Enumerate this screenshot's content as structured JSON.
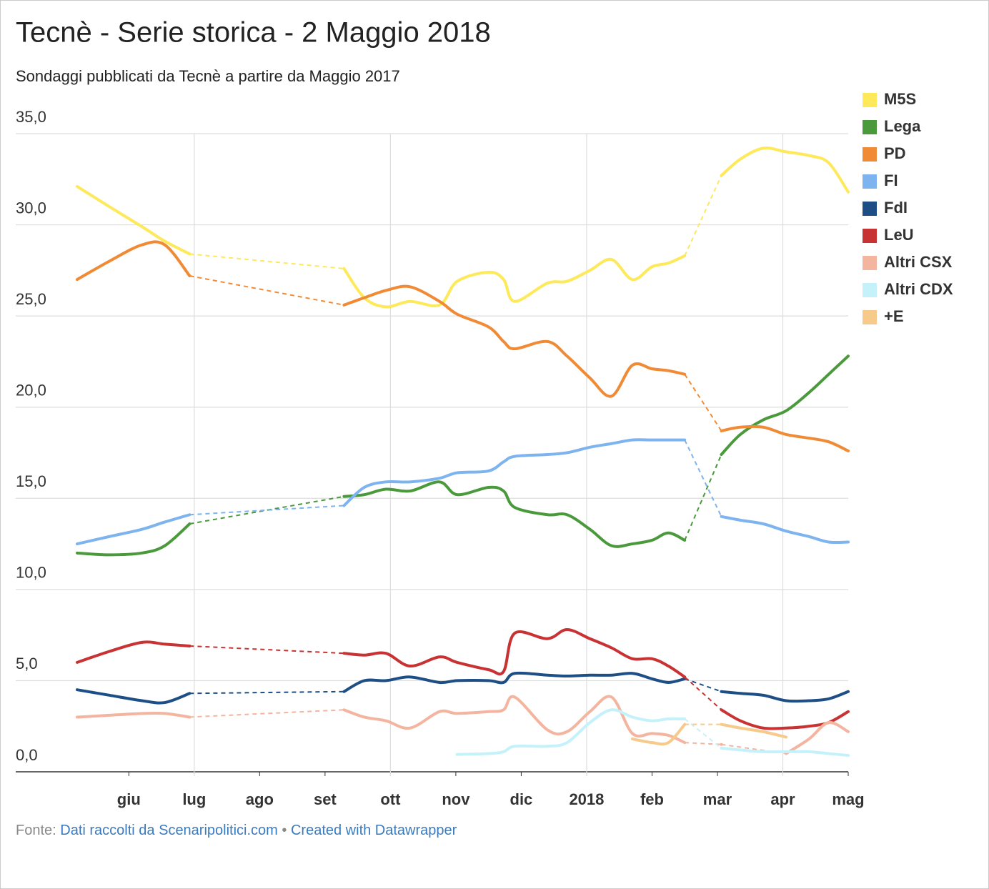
{
  "chart_data": {
    "type": "line",
    "title": "Tecnè - Serie storica - 2 Maggio 2018",
    "subtitle": "Sondaggi pubblicati da Tecnè a partire da Maggio 2017",
    "footer": {
      "prefix": "Fonte:",
      "source": "Dati raccolti da Scenaripolitici.com",
      "separator": "•",
      "credit": "Created with Datawrapper"
    },
    "x": [
      0.21,
      0.7,
      1.2,
      1.55,
      1.93,
      4.29,
      4.6,
      4.93,
      5.3,
      5.75,
      6.02,
      6.5,
      6.73,
      6.9,
      7.4,
      7.7,
      8.05,
      8.38,
      8.7,
      9.0,
      9.25,
      9.5,
      10.06,
      10.35,
      10.7,
      11.05,
      11.4,
      11.7,
      12.0
    ],
    "xlim": [
      0.21,
      12.0
    ],
    "xticks": [
      {
        "value": 1,
        "label": "giu"
      },
      {
        "value": 2,
        "label": "lug"
      },
      {
        "value": 3,
        "label": "ago"
      },
      {
        "value": 4,
        "label": "set"
      },
      {
        "value": 5,
        "label": "ott"
      },
      {
        "value": 6,
        "label": "nov"
      },
      {
        "value": 7,
        "label": "dic"
      },
      {
        "value": 8,
        "label": "2018"
      },
      {
        "value": 9,
        "label": "feb"
      },
      {
        "value": 10,
        "label": "mar"
      },
      {
        "value": 11,
        "label": "apr"
      },
      {
        "value": 12,
        "label": "mag"
      }
    ],
    "ylim": [
      0,
      35
    ],
    "yticks": [
      {
        "value": 0,
        "label": "0,0"
      },
      {
        "value": 5,
        "label": "5,0"
      },
      {
        "value": 10,
        "label": "10,0"
      },
      {
        "value": 15,
        "label": "15,0"
      },
      {
        "value": 20,
        "label": "20,0"
      },
      {
        "value": 25,
        "label": "25,0"
      },
      {
        "value": 30,
        "label": "30,0"
      },
      {
        "value": 35,
        "label": "35,0"
      }
    ],
    "grid": true,
    "legend": "right",
    "series": [
      {
        "name": "M5S",
        "color": "#fde95a",
        "values": [
          32.1,
          31.0,
          29.9,
          29.1,
          28.4,
          27.6,
          26.0,
          25.5,
          25.8,
          25.6,
          26.9,
          27.4,
          27.0,
          25.8,
          26.8,
          26.9,
          27.5,
          28.1,
          27.0,
          27.7,
          27.9,
          28.3,
          32.7,
          33.6,
          34.2,
          34.0,
          33.8,
          33.4,
          31.8
        ]
      },
      {
        "name": "Lega",
        "color": "#4a9a3c",
        "values": [
          12.0,
          11.9,
          12.0,
          12.4,
          13.6,
          15.1,
          15.2,
          15.5,
          15.4,
          15.9,
          15.2,
          15.6,
          15.4,
          14.5,
          14.1,
          14.1,
          13.3,
          12.4,
          12.5,
          12.7,
          13.1,
          12.7,
          17.4,
          18.5,
          19.3,
          19.8,
          20.8,
          21.8,
          22.8
        ]
      },
      {
        "name": "PD",
        "color": "#f08a35",
        "values": [
          27.0,
          28.0,
          28.9,
          28.9,
          27.2,
          25.6,
          26.0,
          26.4,
          26.6,
          25.8,
          25.1,
          24.4,
          23.6,
          23.2,
          23.6,
          22.8,
          21.6,
          20.6,
          22.3,
          22.1,
          22.0,
          21.8,
          18.7,
          18.9,
          18.9,
          18.5,
          18.3,
          18.1,
          17.6
        ]
      },
      {
        "name": "FI",
        "color": "#7db3ee",
        "values": [
          12.5,
          12.9,
          13.3,
          13.7,
          14.1,
          14.6,
          15.6,
          15.9,
          15.9,
          16.1,
          16.4,
          16.5,
          17.0,
          17.3,
          17.4,
          17.5,
          17.8,
          18.0,
          18.2,
          18.2,
          18.2,
          18.2,
          14.0,
          13.8,
          13.6,
          13.2,
          12.9,
          12.6,
          12.6
        ]
      },
      {
        "name": "FdI",
        "color": "#1d4e86",
        "values": [
          4.5,
          4.2,
          3.9,
          3.8,
          4.3,
          4.4,
          5.0,
          5.0,
          5.2,
          4.9,
          5.0,
          5.0,
          4.9,
          5.4,
          5.3,
          5.25,
          5.3,
          5.3,
          5.4,
          5.1,
          4.9,
          5.1,
          4.4,
          4.3,
          4.2,
          3.9,
          3.9,
          4.0,
          4.4
        ]
      },
      {
        "name": "LeU",
        "color": "#c83232",
        "values": [
          6.0,
          6.6,
          7.1,
          7.0,
          6.9,
          6.5,
          6.4,
          6.5,
          5.8,
          6.3,
          6.0,
          5.6,
          5.5,
          7.6,
          7.3,
          7.8,
          7.3,
          6.8,
          6.2,
          6.2,
          5.8,
          5.2,
          3.4,
          2.8,
          2.4,
          2.4,
          2.5,
          2.7,
          3.3
        ]
      },
      {
        "name": "Altri CSX",
        "color": "#f3b5a0",
        "values": [
          3.0,
          3.1,
          3.2,
          3.2,
          3.0,
          3.4,
          3.0,
          2.8,
          2.4,
          3.3,
          3.2,
          3.3,
          3.4,
          4.1,
          2.3,
          2.2,
          3.3,
          4.1,
          2.1,
          2.1,
          2.0,
          1.6,
          1.5,
          null,
          null,
          1.0,
          1.8,
          2.7,
          2.2
        ]
      },
      {
        "name": "Altri CDX",
        "color": "#c5f2fa",
        "values": [
          null,
          null,
          null,
          null,
          null,
          null,
          null,
          null,
          null,
          null,
          0.95,
          1.0,
          1.1,
          1.4,
          1.4,
          1.6,
          2.7,
          3.4,
          3.0,
          2.8,
          2.9,
          2.9,
          1.3,
          1.2,
          1.1,
          1.1,
          1.1,
          1.0,
          0.9
        ]
      },
      {
        "name": "+E",
        "color": "#f7c98a",
        "values": [
          null,
          null,
          null,
          null,
          null,
          null,
          null,
          null,
          null,
          null,
          null,
          null,
          null,
          null,
          null,
          null,
          null,
          null,
          1.8,
          1.6,
          1.6,
          2.6,
          2.6,
          2.4,
          2.2,
          1.9,
          null,
          null,
          null
        ]
      }
    ]
  }
}
